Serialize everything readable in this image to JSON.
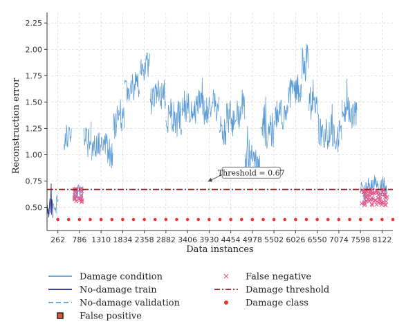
{
  "chart_data": {
    "type": "line",
    "title": "",
    "xlabel": "Data instances",
    "ylabel": "Reconstruction error",
    "xlim": [
      0,
      8384
    ],
    "ylim": [
      0.28,
      2.35
    ],
    "x_ticks": [
      262,
      786,
      1310,
      1834,
      2358,
      2882,
      3406,
      3930,
      4454,
      4978,
      5502,
      6026,
      6550,
      7074,
      7598,
      8122
    ],
    "x_tick_labels": [
      "262",
      "786",
      "1310",
      "1834",
      "2358",
      "2882",
      "3406",
      "3930",
      "4454",
      "4978",
      "5502",
      "6026",
      "6550",
      "7074",
      "7598",
      "8122"
    ],
    "y_ticks": [
      0.5,
      0.75,
      1.0,
      1.25,
      1.5,
      1.75,
      2.0,
      2.25
    ],
    "y_tick_labels": [
      "0.50",
      "0.75",
      "1.00",
      "1.25",
      "1.50",
      "1.75",
      "2.00",
      "2.25"
    ],
    "grid": true,
    "threshold": 0.67,
    "annotation": {
      "text": "Threshold = 0.67",
      "arrow_to": [
        3900,
        0.745
      ],
      "box_at": [
        4950,
        0.83
      ]
    },
    "series": [
      {
        "name": "Damage condition",
        "color": "#5b9bd5",
        "style": "noisy-band",
        "segments": [
          {
            "x": [
              150,
              280
            ],
            "mean": 0.5,
            "amp": 0.08
          },
          {
            "x": [
              400,
              600
            ],
            "mean": 1.15,
            "amp": 0.12
          },
          {
            "x": [
              640,
              880
            ],
            "mean": 0.65,
            "amp": 0.1
          },
          {
            "x": [
              890,
              1080
            ],
            "mean": 1.18,
            "amp": 0.12
          },
          {
            "x": [
              1080,
              1600
            ],
            "mean": 1.08,
            "amp": 0.13
          },
          {
            "x": [
              1600,
              1880
            ],
            "mean": 1.33,
            "amp": 0.15
          },
          {
            "x": [
              1880,
              2250
            ],
            "mean": 1.62,
            "amp": 0.13
          },
          {
            "x": [
              2250,
              2500
            ],
            "mean": 1.78,
            "amp": 0.15
          },
          {
            "x": [
              2500,
              2880
            ],
            "mean": 1.55,
            "amp": 0.14
          },
          {
            "x": [
              2880,
              3270
            ],
            "mean": 1.32,
            "amp": 0.14
          },
          {
            "x": [
              3270,
              3830
            ],
            "mean": 1.45,
            "amp": 0.15
          },
          {
            "x": [
              3830,
              4180
            ],
            "mean": 1.45,
            "amp": 0.14
          },
          {
            "x": [
              4180,
              4350
            ],
            "mean": 1.2,
            "amp": 0.12
          },
          {
            "x": [
              4350,
              4800
            ],
            "mean": 1.4,
            "amp": 0.15
          },
          {
            "x": [
              4800,
              5180
            ],
            "mean": 0.97,
            "amp": 0.14
          },
          {
            "x": [
              5180,
              5520
            ],
            "mean": 1.22,
            "amp": 0.14
          },
          {
            "x": [
              5520,
              5850
            ],
            "mean": 1.38,
            "amp": 0.14
          },
          {
            "x": [
              5850,
              6180
            ],
            "mean": 1.6,
            "amp": 0.13
          },
          {
            "x": [
              6180,
              6350
            ],
            "mean": 1.85,
            "amp": 0.17
          },
          {
            "x": [
              6350,
              6580
            ],
            "mean": 1.45,
            "amp": 0.14
          },
          {
            "x": [
              6580,
              7150
            ],
            "mean": 1.22,
            "amp": 0.15
          },
          {
            "x": [
              7150,
              7520
            ],
            "mean": 1.4,
            "amp": 0.13
          },
          {
            "x": [
              7600,
              8250
            ],
            "mean": 0.66,
            "amp": 0.08
          }
        ]
      },
      {
        "name": "No-damage train",
        "color": "#1f2a8c",
        "style": "noisy-band",
        "segments": [
          {
            "x": [
              0,
              160
            ],
            "mean": 0.5,
            "amp": 0.09
          }
        ]
      },
      {
        "name": "No-damage validation",
        "color": "#5b9bd5",
        "style": "dashed",
        "segments": []
      },
      {
        "name": "False positive",
        "color": "#222222",
        "style": "square-marker",
        "points": []
      },
      {
        "name": "False negative",
        "color": "#e05c8c",
        "style": "x-marker",
        "clusters": [
          {
            "x": [
              660,
              860
            ],
            "y": [
              0.55,
              0.68
            ],
            "count": 26
          },
          {
            "x": [
              7620,
              8250
            ],
            "y": [
              0.52,
              0.67
            ],
            "count": 70
          }
        ]
      },
      {
        "name": "Damage threshold",
        "color": "#8b1a1a",
        "style": "dash-dot",
        "value": 0.67
      },
      {
        "name": "Damage class",
        "color": "#ee3333",
        "style": "dot",
        "y": 0.385,
        "x_start": 262,
        "x_step": 262
      }
    ]
  },
  "legend": {
    "items": [
      {
        "label": "Damage condition",
        "style": "solid",
        "color": "#5b9bd5"
      },
      {
        "label": "False negative",
        "style": "x",
        "color": "#e05c8c"
      },
      {
        "label": "No-damage train",
        "style": "solid",
        "color": "#1f2a8c"
      },
      {
        "label": "Damage threshold",
        "style": "dashdot",
        "color": "#8b1a1a"
      },
      {
        "label": "No-damage validation",
        "style": "dashed",
        "color": "#5b9bd5"
      },
      {
        "label": "Damage class",
        "style": "dot",
        "color": "#ee3333"
      },
      {
        "label": "False positive",
        "style": "square",
        "color": "#222222",
        "fill": "#e05533"
      }
    ]
  }
}
